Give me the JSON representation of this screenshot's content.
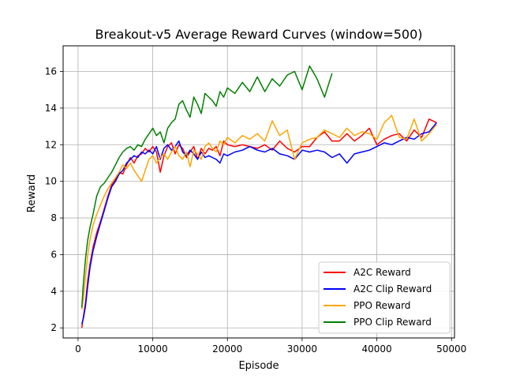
{
  "chart_data": {
    "type": "line",
    "title": "Breakout-v5 Average Reward Curves (window=500)",
    "xlabel": "Episode",
    "ylabel": "Reward",
    "xlim": [
      -2000,
      50400
    ],
    "ylim": [
      1.45,
      17.4
    ],
    "xticks": [
      0,
      10000,
      20000,
      30000,
      40000,
      50000
    ],
    "xtick_labels": [
      "0",
      "10000",
      "20000",
      "30000",
      "40000",
      "50000"
    ],
    "yticks": [
      2,
      4,
      6,
      8,
      10,
      12,
      14,
      16
    ],
    "ytick_labels": [
      "2",
      "4",
      "6",
      "8",
      "10",
      "12",
      "14",
      "16"
    ],
    "grid": true,
    "legend": {
      "position": "lower-right"
    },
    "series": [
      {
        "name": "A2C Reward",
        "color": "#ff0000",
        "x": [
          500,
          700,
          1000,
          1300,
          1600,
          2000,
          2500,
          3000,
          3500,
          4000,
          4500,
          5000,
          5500,
          6000,
          6500,
          7000,
          7500,
          8000,
          8500,
          9000,
          9500,
          10000,
          10500,
          11000,
          11500,
          12000,
          12500,
          13000,
          13500,
          14000,
          14500,
          15000,
          15500,
          16000,
          16500,
          17000,
          17500,
          18000,
          18500,
          19000,
          19500,
          20000,
          21000,
          22000,
          23000,
          24000,
          25000,
          26000,
          27000,
          28000,
          29000,
          30000,
          31000,
          32000,
          33000,
          34000,
          35000,
          36000,
          37000,
          38000,
          39000,
          40000,
          41000,
          42000,
          43000,
          44000,
          45000,
          46000,
          47000,
          48000
        ],
        "y": [
          2.0,
          2.6,
          3.4,
          4.6,
          5.5,
          6.4,
          7.2,
          7.8,
          8.5,
          9.2,
          9.8,
          10.1,
          10.5,
          10.4,
          10.9,
          11.3,
          11.0,
          11.4,
          11.5,
          11.8,
          11.6,
          11.9,
          11.6,
          10.5,
          11.4,
          11.9,
          12.1,
          11.5,
          12.0,
          11.8,
          11.3,
          11.6,
          11.9,
          11.2,
          11.8,
          11.5,
          11.8,
          11.7,
          11.9,
          11.4,
          12.2,
          12.0,
          11.9,
          12.0,
          11.9,
          11.8,
          12.0,
          11.7,
          12.2,
          11.8,
          11.6,
          11.9,
          11.9,
          12.4,
          12.7,
          12.2,
          12.2,
          12.6,
          12.2,
          12.5,
          12.9,
          12.0,
          12.3,
          12.5,
          12.6,
          12.2,
          12.8,
          12.4,
          13.4,
          13.2
        ]
      },
      {
        "name": "A2C Clip Reward",
        "color": "#0000ff",
        "x": [
          500,
          700,
          1000,
          1300,
          1600,
          2000,
          2500,
          3000,
          3500,
          4000,
          4500,
          5000,
          5500,
          6000,
          6500,
          7000,
          7500,
          8000,
          8500,
          9000,
          9500,
          10000,
          10500,
          11000,
          11500,
          12000,
          12500,
          13000,
          13500,
          14000,
          14500,
          15000,
          15500,
          16000,
          16500,
          17000,
          17500,
          18000,
          18500,
          19000,
          19500,
          20000,
          21000,
          22000,
          23000,
          24000,
          25000,
          26000,
          27000,
          28000,
          29000,
          30000,
          31000,
          32000,
          33000,
          34000,
          35000,
          36000,
          37000,
          38000,
          39000,
          40000,
          41000,
          42000,
          43000,
          44000,
          45000,
          46000,
          47000,
          48000
        ],
        "y": [
          2.2,
          2.5,
          3.2,
          4.3,
          5.3,
          6.2,
          7.0,
          7.7,
          8.4,
          9.1,
          9.7,
          10.0,
          10.4,
          10.6,
          11.0,
          11.2,
          11.4,
          11.3,
          11.6,
          11.5,
          11.7,
          11.5,
          11.9,
          11.2,
          11.8,
          12.0,
          11.7,
          11.9,
          12.2,
          11.6,
          11.4,
          11.7,
          11.5,
          11.2,
          11.6,
          11.3,
          11.4,
          11.3,
          11.2,
          11.0,
          11.5,
          11.4,
          11.6,
          11.7,
          11.9,
          11.7,
          11.6,
          11.8,
          11.5,
          11.4,
          11.2,
          11.7,
          11.6,
          11.7,
          11.6,
          11.3,
          11.5,
          11.0,
          11.5,
          11.6,
          11.7,
          11.9,
          12.1,
          12.0,
          12.2,
          12.4,
          12.3,
          12.6,
          12.7,
          13.2
        ]
      },
      {
        "name": "PPO Reward",
        "color": "#ffa500",
        "x": [
          500,
          700,
          1000,
          1300,
          1600,
          2000,
          2500,
          3000,
          3500,
          4000,
          4500,
          5000,
          5500,
          6000,
          6500,
          7000,
          7500,
          8000,
          8500,
          9000,
          9500,
          10000,
          10500,
          11000,
          11500,
          12000,
          12500,
          13000,
          13500,
          14000,
          14500,
          15000,
          15500,
          16000,
          16500,
          17000,
          17500,
          18000,
          18500,
          19000,
          19500,
          20000,
          21000,
          22000,
          23000,
          24000,
          25000,
          26000,
          27000,
          28000,
          29000,
          30000,
          31000,
          32000,
          33000,
          34000,
          35000,
          36000,
          37000,
          38000,
          39000,
          40000,
          41000,
          42000,
          43000,
          44000,
          45000,
          46000,
          47000,
          48000
        ],
        "y": [
          3.0,
          3.6,
          4.8,
          6.0,
          6.8,
          7.6,
          8.2,
          8.7,
          9.2,
          9.6,
          9.9,
          10.2,
          10.5,
          10.9,
          10.7,
          11.0,
          10.6,
          10.3,
          10.0,
          10.6,
          11.2,
          11.4,
          11.0,
          11.3,
          11.5,
          11.2,
          11.6,
          11.9,
          11.4,
          11.2,
          11.6,
          10.8,
          11.7,
          11.5,
          11.2,
          11.9,
          12.1,
          11.8,
          11.6,
          12.2,
          12.0,
          12.4,
          12.1,
          12.5,
          12.3,
          12.6,
          12.2,
          13.3,
          12.5,
          12.8,
          11.2,
          12.1,
          12.3,
          12.4,
          12.8,
          12.6,
          12.4,
          12.9,
          12.5,
          12.7,
          12.6,
          12.3,
          13.2,
          13.6,
          12.4,
          12.3,
          13.4,
          12.2,
          12.6,
          13.1
        ]
      },
      {
        "name": "PPO Clip Reward",
        "color": "#008000",
        "x": [
          500,
          700,
          1000,
          1300,
          1600,
          2000,
          2500,
          3000,
          3500,
          4000,
          4500,
          5000,
          5500,
          6000,
          6500,
          7000,
          7500,
          8000,
          8500,
          9000,
          9500,
          10000,
          10500,
          11000,
          11500,
          12000,
          12500,
          13000,
          13500,
          14000,
          14500,
          15000,
          15500,
          16000,
          16500,
          17000,
          17500,
          18000,
          18500,
          19000,
          19500,
          20000,
          21000,
          22000,
          23000,
          24000,
          25000,
          26000,
          27000,
          28000,
          29000,
          30000,
          31000,
          32000,
          33000,
          34000
        ],
        "y": [
          3.1,
          4.4,
          5.8,
          6.8,
          7.5,
          8.2,
          9.2,
          9.7,
          9.9,
          10.2,
          10.5,
          10.9,
          11.3,
          11.6,
          11.8,
          11.9,
          11.7,
          12.0,
          11.9,
          12.3,
          12.6,
          12.9,
          12.5,
          12.7,
          12.1,
          12.9,
          13.2,
          13.4,
          14.2,
          14.4,
          13.9,
          13.5,
          14.6,
          14.2,
          13.7,
          14.8,
          14.6,
          14.4,
          14.1,
          14.9,
          14.6,
          15.1,
          14.8,
          15.4,
          14.9,
          15.7,
          14.9,
          15.6,
          15.2,
          15.8,
          16.0,
          15.0,
          16.3,
          15.6,
          14.6,
          15.9
        ]
      }
    ]
  }
}
